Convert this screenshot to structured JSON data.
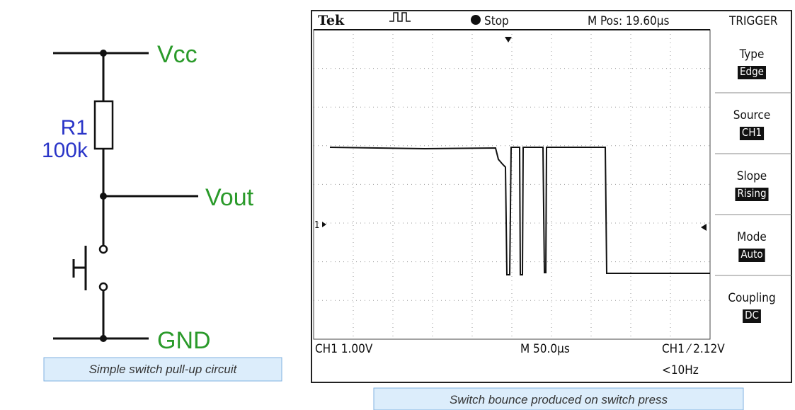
{
  "circuit": {
    "vcc": "Vcc",
    "resistor_name": "R1",
    "resistor_value": "100k",
    "vout": "Vout",
    "gnd": "GND",
    "caption": "Simple switch pull-up circuit"
  },
  "scope": {
    "brand": "Tek",
    "status": "Stop",
    "position": "M Pos: 19.60µs",
    "menu_title": "TRIGGER",
    "menu": [
      {
        "label": "Type",
        "value": "Edge"
      },
      {
        "label": "Source",
        "value": "CH1"
      },
      {
        "label": "Slope",
        "value": "Rising"
      },
      {
        "label": "Mode",
        "value": "Auto"
      },
      {
        "label": "Coupling",
        "value": "DC"
      }
    ],
    "channel_marker": "1",
    "ch_scale": "CH1  1.00V",
    "time_scale": "M 50.0µs",
    "trigger_level": "CH1 ⁄ 2.12V",
    "frequency": "<10Hz",
    "caption": "Switch bounce produced on switch press"
  }
}
